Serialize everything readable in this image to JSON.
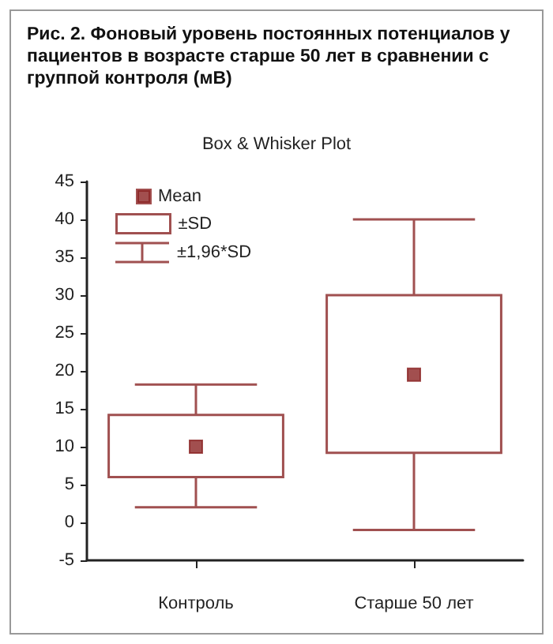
{
  "chart_data": {
    "type": "box",
    "title": "Рис. 2. Фоновый уровень постоянных потенциалов у пациентов в возрасте старше 50 лет в сравнении с группой контроля (мВ)",
    "subtitle": "Box & Whisker Plot",
    "categories": [
      "Контроль",
      "Старше 50 лет"
    ],
    "series": [
      {
        "type": "scatter",
        "name": "Mean",
        "color": "#8b2323",
        "marker": "square",
        "x": [
          "Контроль",
          "Старше 50 лет"
        ],
        "values": [
          10,
          19.5
        ]
      },
      {
        "name": "±SD",
        "color": "#a05050",
        "boxes": [
          {
            "low": 2,
            "q1": 6,
            "q3": 14.2,
            "high": 18.2
          },
          {
            "low": -1,
            "q1": 9.2,
            "q3": 30,
            "high": 40
          }
        ]
      }
    ],
    "annotations": [
      "±1,96*SD"
    ],
    "ylim": [
      -5,
      45
    ],
    "yticks": [
      -5,
      0,
      5,
      10,
      15,
      20,
      25,
      30,
      35,
      40,
      45
    ],
    "grid": false,
    "legend": "top left"
  }
}
